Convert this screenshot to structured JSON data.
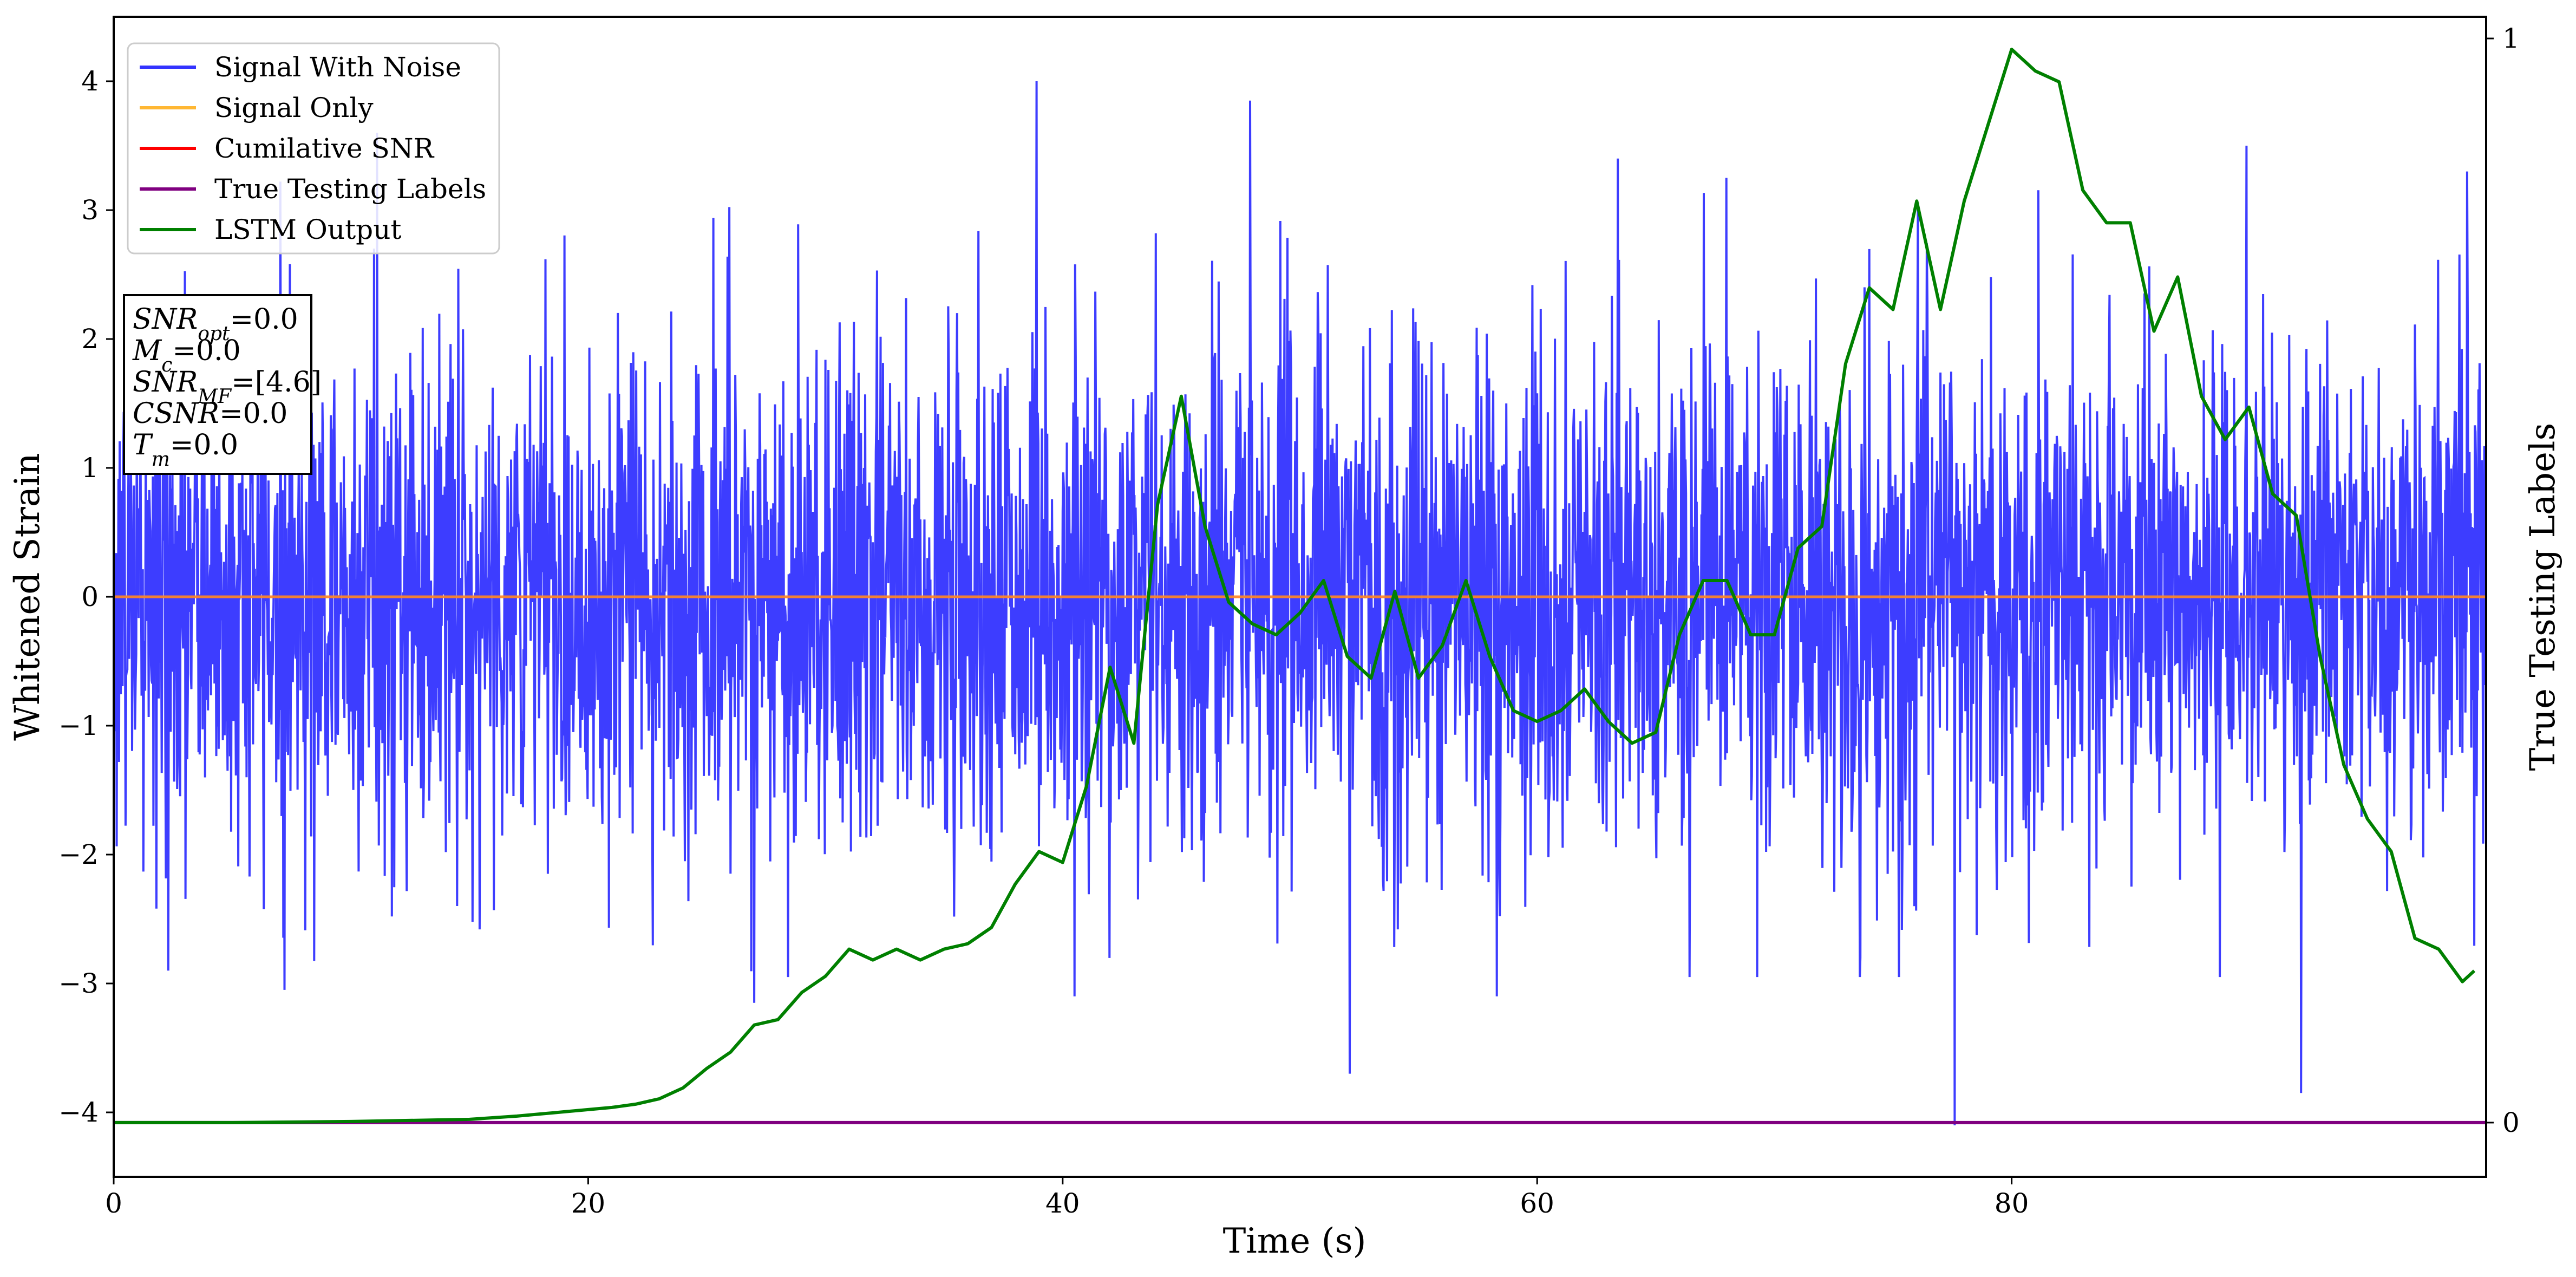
{
  "chart_data": {
    "type": "line",
    "title": "",
    "xlabel": "Time (s)",
    "ylabel": "Whitened Strain",
    "y2label": "True Testing Labels",
    "xlim": [
      0,
      100
    ],
    "ylim": [
      -4.5,
      4.5
    ],
    "y2lim": [
      -0.05,
      1.02
    ],
    "x_ticks": [
      0,
      20,
      40,
      60,
      80
    ],
    "y_ticks": [
      -4,
      -3,
      -2,
      -1,
      0,
      1,
      2,
      3,
      4
    ],
    "y2_ticks": [
      0,
      1
    ],
    "grid": false,
    "legend_position": "top-left",
    "legend": [
      {
        "name": "Signal With Noise",
        "color": "#3333ff"
      },
      {
        "name": "Signal Only",
        "color": "#ffb733"
      },
      {
        "name": "Cumilative SNR",
        "color": "#ff0000"
      },
      {
        "name": "True Testing Labels",
        "color": "#800080"
      },
      {
        "name": "LSTM Output",
        "color": "#008000"
      }
    ],
    "info_box": [
      {
        "var": "SNR",
        "sub": "opt",
        "value": "=0.0"
      },
      {
        "var": "M",
        "sub": "c",
        "value": "=0.0"
      },
      {
        "var": "SNR",
        "sub": "MF",
        "value": "=[4.6]"
      },
      {
        "var": "CSNR",
        "sub": "",
        "value": "=0.0"
      },
      {
        "var": "T",
        "sub": "m",
        "value": "=0.0"
      }
    ],
    "series": [
      {
        "name": "Signal With Noise",
        "color": "#3333ff",
        "axis": "left",
        "style": "dense-noise",
        "points_per_second": 40,
        "std": 1.0,
        "band_upper_approx": 1.7,
        "band_lower_approx": -1.7,
        "notable_extremes": [
          {
            "x": 2.3,
            "y": -2.9
          },
          {
            "x": 7.2,
            "y": -3.05
          },
          {
            "x": 11.1,
            "y": 3.6
          },
          {
            "x": 27.0,
            "y": -3.15
          },
          {
            "x": 38.9,
            "y": 4.0
          },
          {
            "x": 40.5,
            "y": -3.1
          },
          {
            "x": 47.9,
            "y": 3.85
          },
          {
            "x": 52.1,
            "y": -3.7
          },
          {
            "x": 58.3,
            "y": -3.1
          },
          {
            "x": 63.4,
            "y": 3.4
          },
          {
            "x": 77.6,
            "y": -4.1
          },
          {
            "x": 89.9,
            "y": 3.5
          },
          {
            "x": 92.2,
            "y": -3.85
          },
          {
            "x": 99.2,
            "y": 3.3
          }
        ]
      },
      {
        "name": "Signal Only",
        "color": "#ffb733",
        "axis": "left",
        "x": [
          0,
          100
        ],
        "y": [
          0,
          0
        ]
      },
      {
        "name": "Cumilative SNR",
        "color": "#ff0000",
        "axis": "left",
        "x": [
          0,
          100
        ],
        "y": [
          0,
          0
        ]
      },
      {
        "name": "True Testing Labels",
        "color": "#800080",
        "axis": "right",
        "x": [
          0,
          100
        ],
        "y": [
          0,
          0
        ]
      },
      {
        "name": "LSTM Output",
        "color": "#008000",
        "axis": "right",
        "x": [
          0,
          5,
          10,
          15,
          17,
          18,
          19,
          20,
          21,
          22,
          23,
          24,
          25,
          26,
          27,
          28,
          29,
          30,
          31,
          32,
          33,
          34,
          35,
          36,
          37,
          38,
          39,
          40,
          41,
          42,
          43,
          44,
          45,
          46,
          47,
          48,
          49,
          50,
          51,
          52,
          53,
          54,
          55,
          56,
          57,
          58,
          59,
          60,
          61,
          62,
          63,
          64,
          65,
          66,
          67,
          68,
          69,
          70,
          71,
          72,
          73,
          74,
          75,
          76,
          77,
          78,
          79,
          80,
          81,
          82,
          83,
          84,
          85,
          86,
          87,
          88,
          89,
          90,
          91,
          92,
          93,
          94,
          95,
          96,
          97,
          98,
          99,
          99.5
        ],
        "y": [
          0,
          0,
          0.001,
          0.003,
          0.006,
          0.008,
          0.01,
          0.012,
          0.014,
          0.017,
          0.022,
          0.032,
          0.05,
          0.065,
          0.09,
          0.095,
          0.12,
          0.135,
          0.16,
          0.15,
          0.16,
          0.15,
          0.16,
          0.165,
          0.18,
          0.22,
          0.25,
          0.24,
          0.31,
          0.42,
          0.35,
          0.57,
          0.67,
          0.55,
          0.48,
          0.46,
          0.45,
          0.47,
          0.5,
          0.43,
          0.41,
          0.49,
          0.41,
          0.44,
          0.5,
          0.43,
          0.38,
          0.37,
          0.38,
          0.4,
          0.37,
          0.35,
          0.36,
          0.45,
          0.5,
          0.5,
          0.45,
          0.45,
          0.53,
          0.55,
          0.7,
          0.77,
          0.75,
          0.85,
          0.75,
          0.85,
          0.92,
          0.99,
          0.97,
          0.96,
          0.86,
          0.83,
          0.83,
          0.73,
          0.78,
          0.67,
          0.63,
          0.66,
          0.58,
          0.56,
          0.43,
          0.33,
          0.28,
          0.25,
          0.17,
          0.16,
          0.13,
          0.14
        ]
      }
    ]
  }
}
